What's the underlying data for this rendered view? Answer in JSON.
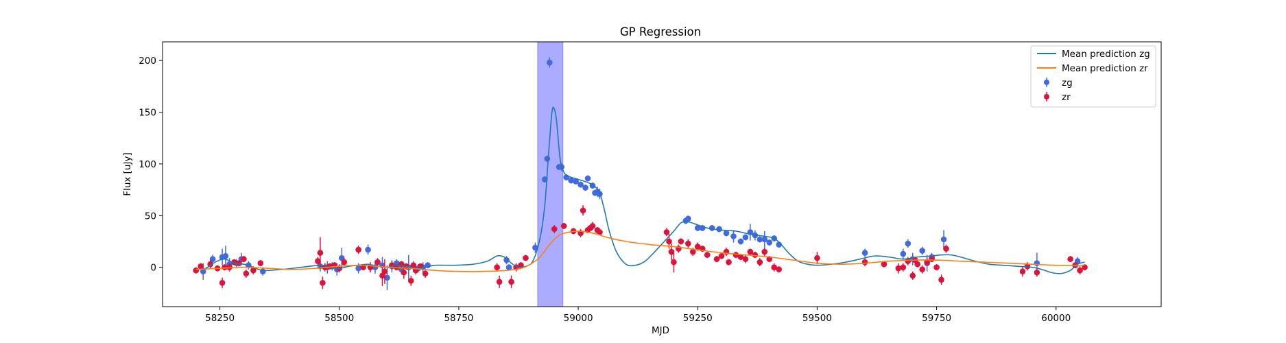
{
  "chart_data": {
    "type": "scatter",
    "title": "GP Regression",
    "xlabel": "MJD",
    "ylabel": "Flux [uJy]",
    "xlim": [
      58130,
      60220
    ],
    "ylim": [
      -38,
      218
    ],
    "xticks": [
      58250,
      58500,
      58750,
      59000,
      59250,
      59500,
      59750,
      60000
    ],
    "yticks": [
      0,
      50,
      100,
      150,
      200
    ],
    "highlight_span": [
      58915,
      58968
    ],
    "colors": {
      "zg_points": "#4169e1",
      "zr_points": "#dc143c",
      "zg_line": "#1f77b4",
      "zr_line": "#ff7f0e",
      "span": "#0000ff"
    },
    "legend": {
      "placement": "upper right",
      "entries": [
        {
          "label": "Mean prediction zg",
          "kind": "line",
          "color": "#1f77b4"
        },
        {
          "label": "Mean prediction zr",
          "kind": "line",
          "color": "#ff7f0e"
        },
        {
          "label": "zg",
          "kind": "errorbar",
          "color": "#4169e1"
        },
        {
          "label": "zr",
          "kind": "errorbar",
          "color": "#dc143c"
        }
      ]
    },
    "series": [
      {
        "name": "Mean prediction zg",
        "kind": "line",
        "x": [
          58200,
          58220,
          58240,
          58260,
          58280,
          58300,
          58320,
          58340,
          58380,
          58420,
          58460,
          58480,
          58500,
          58520,
          58540,
          58560,
          58580,
          58600,
          58620,
          58640,
          58660,
          58680,
          58700,
          58740,
          58780,
          58810,
          58830,
          58845,
          58860,
          58875,
          58890,
          58905,
          58920,
          58930,
          58938,
          58945,
          58950,
          58955,
          58962,
          58970,
          58980,
          59000,
          59020,
          59035,
          59045,
          59055,
          59065,
          59080,
          59100,
          59120,
          59140,
          59160,
          59180,
          59200,
          59215,
          59230,
          59250,
          59270,
          59300,
          59330,
          59360,
          59390,
          59410,
          59425,
          59440,
          59460,
          59480,
          59500,
          59530,
          59560,
          59590,
          59620,
          59650,
          59680,
          59710,
          59740,
          59760,
          59780,
          59800,
          59830,
          59860,
          59890,
          59920,
          59950,
          59970,
          59990,
          60010,
          60030,
          60045,
          60060
        ],
        "y": [
          -2,
          -1,
          5,
          8,
          4,
          3,
          0,
          -3,
          -2,
          0,
          2,
          0,
          -1,
          1,
          2,
          3,
          1,
          0,
          2,
          1,
          -1,
          0,
          2,
          2,
          3,
          6,
          11,
          10,
          4,
          0,
          1,
          6,
          28,
          60,
          110,
          150,
          153,
          140,
          105,
          92,
          88,
          85,
          82,
          78,
          72,
          55,
          35,
          15,
          3,
          2,
          6,
          15,
          25,
          35,
          43,
          44,
          41,
          38,
          36,
          35,
          32,
          30,
          28,
          22,
          14,
          6,
          3,
          2,
          3,
          5,
          8,
          11,
          10,
          8,
          10,
          11,
          12,
          12,
          10,
          6,
          3,
          2,
          1,
          0,
          -2,
          -5,
          -6,
          -3,
          3,
          5
        ]
      },
      {
        "name": "Mean prediction zr",
        "kind": "line",
        "x": [
          58200,
          58250,
          58300,
          58350,
          58400,
          58450,
          58500,
          58550,
          58600,
          58650,
          58700,
          58750,
          58800,
          58850,
          58880,
          58900,
          58920,
          58940,
          58960,
          58980,
          59000,
          59020,
          59040,
          59060,
          59100,
          59150,
          59200,
          59250,
          59300,
          59350,
          59400,
          59450,
          59500,
          59550,
          59600,
          59650,
          59700,
          59750,
          59800,
          59850,
          59900,
          59950,
          60000,
          60050,
          60060
        ],
        "y": [
          -2,
          -1,
          0,
          -1,
          -2,
          -1,
          1,
          2,
          0,
          -1,
          -3,
          -4,
          -4,
          -3,
          -1,
          3,
          10,
          22,
          31,
          34,
          35,
          34,
          32,
          29,
          25,
          22,
          20,
          17,
          14,
          12,
          10,
          7,
          4,
          3,
          4,
          6,
          7,
          7,
          6,
          5,
          4,
          3,
          2,
          2,
          2
        ]
      },
      {
        "name": "zg",
        "kind": "errorbar",
        "x": [
          58215,
          58235,
          58255,
          58262,
          58270,
          58285,
          58295,
          58310,
          58340,
          58460,
          58475,
          58485,
          58495,
          58505,
          58540,
          58560,
          58575,
          58590,
          58600,
          58610,
          58620,
          58630,
          58645,
          58655,
          58665,
          58675,
          58685,
          58850,
          58855,
          58910,
          58930,
          58935,
          58940,
          58960,
          58965,
          58975,
          58985,
          58995,
          59005,
          59015,
          59020,
          59030,
          59035,
          59040,
          59045,
          59225,
          59230,
          59250,
          59260,
          59280,
          59295,
          59310,
          59325,
          59340,
          59350,
          59360,
          59370,
          59380,
          59390,
          59400,
          59410,
          59420,
          59600,
          59680,
          59690,
          59700,
          59720,
          59730,
          59740,
          59765,
          59960,
          60045
        ],
        "y": [
          -4,
          8,
          10,
          11,
          3,
          4,
          8,
          2,
          -4,
          1,
          0,
          1,
          -2,
          9,
          -1,
          17,
          0,
          2,
          -10,
          1,
          4,
          -2,
          0,
          1,
          -1,
          0,
          2,
          7,
          0,
          19,
          85,
          105,
          198,
          97,
          97,
          87,
          84,
          83,
          80,
          77,
          86,
          79,
          72,
          73,
          71,
          45,
          47,
          38,
          38,
          38,
          37,
          33,
          30,
          25,
          29,
          34,
          31,
          27,
          27,
          24,
          28,
          22,
          14,
          13,
          23,
          8,
          16,
          4,
          10,
          27,
          4,
          6
        ],
        "yerr": [
          8,
          4,
          8,
          10,
          6,
          4,
          6,
          4,
          4,
          5,
          6,
          4,
          6,
          10,
          5,
          5,
          6,
          8,
          12,
          6,
          4,
          5,
          12,
          5,
          4,
          5,
          3,
          4,
          3,
          5,
          3,
          3,
          5,
          3,
          4,
          3,
          3,
          2,
          3,
          3,
          3,
          3,
          3,
          5,
          5,
          3,
          3,
          3,
          3,
          3,
          3,
          3,
          6,
          3,
          3,
          8,
          5,
          3,
          8,
          3,
          3,
          3,
          4,
          5,
          4,
          6,
          4,
          8,
          4,
          9,
          10,
          4
        ]
      },
      {
        "name": "zr",
        "kind": "errorbar",
        "x": [
          58200,
          58210,
          58230,
          58245,
          58255,
          58260,
          58270,
          58280,
          58290,
          58300,
          58305,
          58320,
          58335,
          58455,
          58460,
          58465,
          58470,
          58480,
          58490,
          58500,
          58510,
          58540,
          58550,
          58565,
          58580,
          58590,
          58595,
          58610,
          58620,
          58630,
          58635,
          58640,
          58650,
          58655,
          58660,
          58670,
          58680,
          58830,
          58835,
          58860,
          58870,
          58880,
          58890,
          58950,
          58970,
          58990,
          59005,
          59010,
          59020,
          59025,
          59030,
          59040,
          59045,
          59185,
          59190,
          59195,
          59200,
          59210,
          59215,
          59230,
          59240,
          59250,
          59260,
          59270,
          59290,
          59300,
          59310,
          59315,
          59330,
          59340,
          59350,
          59360,
          59370,
          59380,
          59390,
          59400,
          59410,
          59420,
          59500,
          59600,
          59640,
          59670,
          59680,
          59690,
          59700,
          59705,
          59710,
          59720,
          59730,
          59740,
          59750,
          59760,
          59770,
          59930,
          59940,
          59960,
          60030,
          60040,
          60050,
          60060
        ],
        "y": [
          -3,
          1,
          3,
          -1,
          -15,
          0,
          0,
          5,
          4,
          8,
          -6,
          -3,
          4,
          6,
          14,
          -15,
          0,
          1,
          2,
          -1,
          5,
          17,
          0,
          0,
          5,
          -8,
          -4,
          2,
          0,
          3,
          -5,
          1,
          -13,
          2,
          -3,
          1,
          -6,
          0,
          -14,
          -14,
          0,
          2,
          9,
          37,
          40,
          35,
          33,
          55,
          36,
          38,
          40,
          36,
          34,
          34,
          25,
          15,
          5,
          18,
          25,
          23,
          15,
          20,
          18,
          12,
          8,
          11,
          15,
          5,
          12,
          10,
          8,
          15,
          12,
          5,
          15,
          8,
          0,
          -2,
          9,
          5,
          3,
          -1,
          0,
          6,
          -8,
          7,
          3,
          -2,
          5,
          8,
          0,
          -12,
          18,
          -4,
          1,
          -5,
          8,
          2,
          -3,
          0
        ],
        "yerr": [
          3,
          3,
          4,
          3,
          5,
          3,
          4,
          3,
          3,
          3,
          4,
          4,
          3,
          4,
          15,
          6,
          4,
          3,
          3,
          4,
          4,
          4,
          3,
          5,
          4,
          10,
          12,
          4,
          3,
          3,
          6,
          3,
          5,
          3,
          4,
          3,
          4,
          4,
          6,
          6,
          4,
          3,
          3,
          4,
          3,
          3,
          4,
          5,
          3,
          3,
          4,
          3,
          3,
          4,
          7,
          8,
          10,
          4,
          3,
          4,
          4,
          4,
          3,
          3,
          3,
          3,
          4,
          3,
          3,
          3,
          4,
          3,
          3,
          4,
          4,
          3,
          4,
          3,
          6,
          4,
          3,
          5,
          4,
          4,
          4,
          3,
          3,
          4,
          4,
          3,
          3,
          5,
          4,
          5,
          4,
          4,
          3,
          3,
          4,
          3
        ]
      }
    ]
  }
}
